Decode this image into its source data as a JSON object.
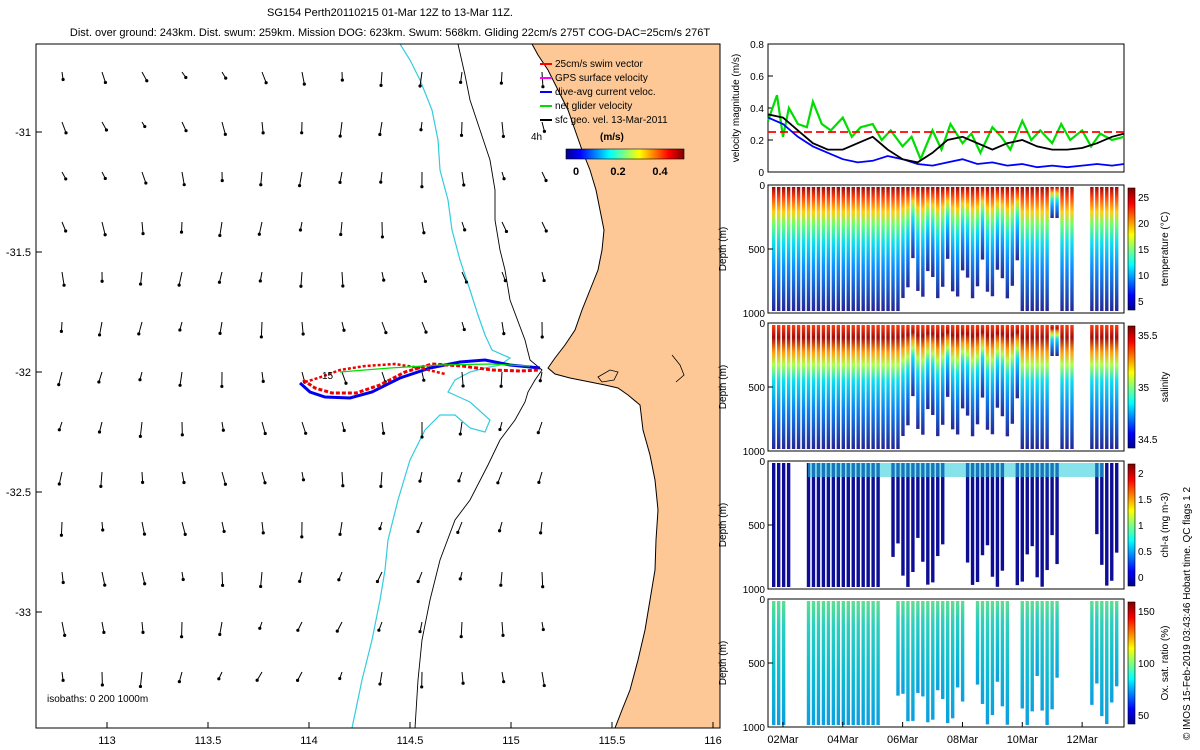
{
  "header": {
    "line1": "SG154 Perth20110215 01-Mar 12Z to 13-Mar 11Z.",
    "line2": "Dist. over ground: 243km. Dist. swum: 259km. Mission DOG: 623km. Swum: 568km. Gliding 22cm/s 275T COG-DAC=25cm/s 276T"
  },
  "credit": "© IMOS 15-Feb-2019 03:43:46 Hobart time. QC flags 1  2",
  "map": {
    "xticks": [
      "113",
      "113.5",
      "114",
      "114.5",
      "115",
      "115.5",
      "116"
    ],
    "yticks": [
      "-31",
      "-31.5",
      "-32",
      "-32.5",
      "-33"
    ],
    "legend": [
      {
        "label": "25cm/s swim vector",
        "color": "#ff0000"
      },
      {
        "label": "GPS surface velocity",
        "color": "#ff00ff"
      },
      {
        "label": "dive-avg current veloc.",
        "color": "#0000ff"
      },
      {
        "label": "net glider velocity",
        "color": "#00dd00"
      },
      {
        "label": "sfc geo. vel. 13-Mar-2011",
        "color": "#000000"
      }
    ],
    "colorbar_unit": "(m/s)",
    "colorbar_ticks": [
      "0",
      "0.2",
      "0.4"
    ],
    "label_4h": "4h",
    "label_15": "15",
    "isobaths_label": "isobaths: 0   200  1000m",
    "colors": {
      "land": "#fdc895",
      "isobath200": "#33ccdd",
      "coast": "#000000",
      "track_red": "#ee0000",
      "track_blue": "#0000ee"
    }
  },
  "velocity_panel": {
    "ylabel": "velocity magnitude (m/s)",
    "yticks": [
      "0",
      "0.2",
      "0.4",
      "0.6",
      "0.8"
    ],
    "chart_data": {
      "type": "line",
      "x_range_days": [
        "01-Mar",
        "13-Mar"
      ],
      "ylim": [
        0,
        0.8
      ],
      "series": [
        {
          "name": "net glider velocity",
          "color": "#00dd00",
          "x": [
            1.5,
            1.8,
            2.0,
            2.2,
            2.5,
            2.8,
            3.0,
            3.3,
            3.6,
            4.0,
            4.3,
            4.6,
            5.0,
            5.3,
            5.6,
            6.0,
            6.3,
            6.6,
            7.0,
            7.3,
            7.6,
            8.0,
            8.3,
            8.6,
            9.0,
            9.3,
            9.6,
            10.0,
            10.3,
            10.6,
            11.0,
            11.3,
            11.6,
            12.0,
            12.3,
            12.6,
            13.0,
            13.4
          ],
          "y": [
            0.32,
            0.48,
            0.22,
            0.4,
            0.3,
            0.28,
            0.44,
            0.3,
            0.26,
            0.34,
            0.22,
            0.28,
            0.3,
            0.2,
            0.26,
            0.16,
            0.22,
            0.08,
            0.26,
            0.14,
            0.3,
            0.18,
            0.24,
            0.12,
            0.28,
            0.22,
            0.14,
            0.32,
            0.2,
            0.26,
            0.18,
            0.3,
            0.2,
            0.26,
            0.16,
            0.24,
            0.2,
            0.22
          ]
        },
        {
          "name": "25cm/s swim vector",
          "color": "#ff0000",
          "x": [
            1.5,
            13.4
          ],
          "y": [
            0.25,
            0.25
          ]
        },
        {
          "name": "dive-avg current veloc.",
          "color": "#0000ff",
          "x": [
            1.5,
            2.0,
            2.5,
            3.0,
            3.5,
            4.0,
            4.5,
            5.0,
            5.5,
            6.0,
            6.5,
            7.0,
            7.5,
            8.0,
            8.5,
            9.0,
            9.5,
            10.0,
            10.5,
            11.0,
            11.5,
            12.0,
            12.5,
            13.0,
            13.4
          ],
          "y": [
            0.34,
            0.3,
            0.22,
            0.16,
            0.12,
            0.08,
            0.06,
            0.07,
            0.1,
            0.08,
            0.05,
            0.04,
            0.06,
            0.08,
            0.05,
            0.06,
            0.04,
            0.05,
            0.03,
            0.04,
            0.03,
            0.04,
            0.05,
            0.04,
            0.05
          ]
        },
        {
          "name": "sfc geo. vel.",
          "color": "#000000",
          "x": [
            1.5,
            2.0,
            2.5,
            3.0,
            3.5,
            4.0,
            4.5,
            5.0,
            5.5,
            6.0,
            6.5,
            7.0,
            7.5,
            8.0,
            8.5,
            9.0,
            9.5,
            10.0,
            10.5,
            11.0,
            11.5,
            12.0,
            12.5,
            13.0,
            13.4
          ],
          "y": [
            0.36,
            0.34,
            0.26,
            0.18,
            0.14,
            0.14,
            0.18,
            0.22,
            0.14,
            0.08,
            0.06,
            0.12,
            0.2,
            0.22,
            0.18,
            0.14,
            0.18,
            0.2,
            0.16,
            0.14,
            0.14,
            0.15,
            0.18,
            0.22,
            0.24
          ]
        }
      ]
    }
  },
  "section_panels": [
    {
      "ylabel": "Depth (m)",
      "cbar_label": "temperature (°C)",
      "cbar_ticks": [
        "5",
        "10",
        "15",
        "20",
        "25"
      ],
      "yticks": [
        "0",
        "500",
        "1000"
      ]
    },
    {
      "ylabel": "Depth (m)",
      "cbar_label": "salinity",
      "cbar_ticks": [
        "34.5",
        "35",
        "35.5"
      ],
      "yticks": [
        "0",
        "500",
        "1000"
      ]
    },
    {
      "ylabel": "Depth (m)",
      "cbar_label": "chl-a (mg m-3)",
      "cbar_ticks": [
        "0",
        "0.5",
        "1",
        "1.5",
        "2"
      ],
      "yticks": [
        "0",
        "500",
        "1000"
      ]
    },
    {
      "ylabel": "Depth (m)",
      "cbar_label": "Ox. sat. ratio (%)",
      "cbar_ticks": [
        "50",
        "100",
        "150"
      ],
      "yticks": [
        "0",
        "500",
        "1000"
      ]
    }
  ],
  "time_axis": {
    "ticks": [
      "02Mar",
      "04Mar",
      "06Mar",
      "08Mar",
      "10Mar",
      "12Mar"
    ]
  }
}
